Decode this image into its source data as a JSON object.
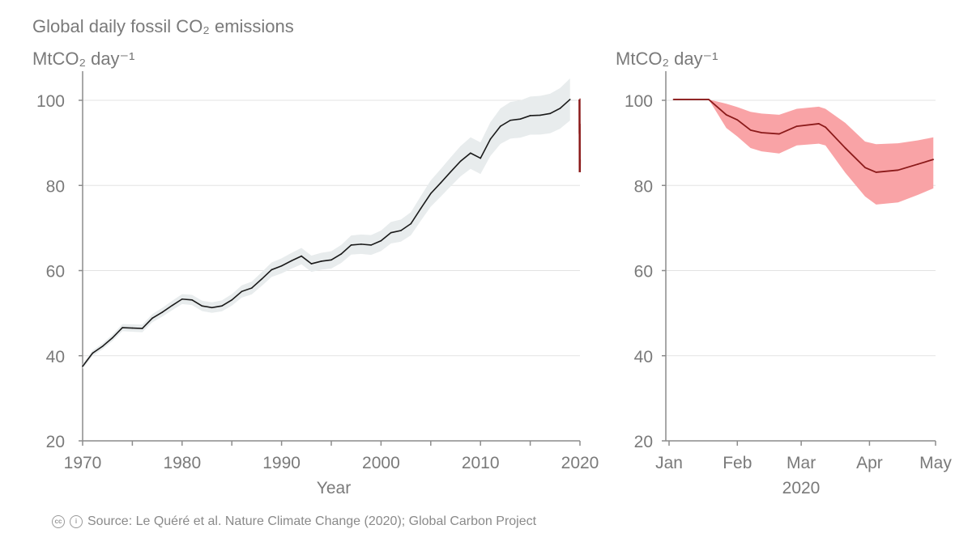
{
  "title": "Global daily fossil CO₂ emissions",
  "source": "Source: Le Quéré et al. Nature Climate Change (2020); Global Carbon Project",
  "colors": {
    "annual_line": "#1a1a1a",
    "annual_band": "#e8eced",
    "daily_line": "#8b1a1a",
    "daily_band": "#f9a3a6",
    "axis": "#8c8c8c",
    "grid": "#e3e3e3",
    "text": "#7a7a7a"
  },
  "chart_data": [
    {
      "type": "line",
      "ylabel": "MtCO₂ day⁻¹",
      "xlabel": "Year",
      "xlim": [
        1970,
        2020
      ],
      "ylim": [
        20,
        105
      ],
      "grid": "horizontal",
      "x_ticks": [
        "1970",
        "1980",
        "1990",
        "2000",
        "2010",
        "2020"
      ],
      "y_ticks": [
        "20",
        "40",
        "60",
        "80",
        "100"
      ],
      "uncertainty_pct": 5,
      "x": [
        1970,
        1971,
        1972,
        1973,
        1974,
        1975,
        1976,
        1977,
        1978,
        1979,
        1980,
        1981,
        1982,
        1983,
        1984,
        1985,
        1986,
        1987,
        1988,
        1989,
        1990,
        1991,
        1992,
        1993,
        1994,
        1995,
        1996,
        1997,
        1998,
        1999,
        2000,
        2001,
        2002,
        2003,
        2004,
        2005,
        2006,
        2007,
        2008,
        2009,
        2010,
        2011,
        2012,
        2013,
        2014,
        2015,
        2016,
        2017,
        2018,
        2019
      ],
      "values": [
        37.5,
        40.6,
        42.2,
        44.2,
        46.6,
        46.5,
        46.4,
        48.8,
        50.2,
        51.8,
        53.3,
        53.1,
        51.7,
        51.3,
        51.7,
        53.1,
        55.1,
        55.9,
        58.0,
        60.2,
        61.1,
        62.3,
        63.4,
        61.6,
        62.2,
        62.5,
        63.9,
        66.0,
        66.2,
        66.0,
        67.0,
        68.9,
        69.4,
        71.0,
        74.6,
        78.1,
        80.6,
        83.2,
        85.7,
        87.6,
        86.4,
        90.9,
        93.9,
        95.3,
        95.6,
        96.4,
        96.5,
        96.9,
        98.1,
        100.2
      ],
      "inset_2020": {
        "note": "daily 2020 values overlaid in red at 2020",
        "min": 83.1
      }
    },
    {
      "type": "area",
      "ylabel": "MtCO₂ day⁻¹",
      "xlabel": "2020",
      "xlim": [
        "2020-01-01",
        "2020-05-01"
      ],
      "ylim": [
        20,
        105
      ],
      "grid": "horizontal",
      "x_ticks": [
        "Jan",
        "Feb",
        "Mar",
        "Apr",
        "May"
      ],
      "y_ticks": [
        "20",
        "40",
        "60",
        "80",
        "100"
      ],
      "dates": [
        "2020-01-03",
        "2020-01-19",
        "2020-01-27",
        "2020-02-01",
        "2020-02-07",
        "2020-02-12",
        "2020-02-20",
        "2020-02-28",
        "2020-03-09",
        "2020-03-12",
        "2020-03-21",
        "2020-03-30",
        "2020-04-04",
        "2020-04-14",
        "2020-04-23",
        "2020-04-30"
      ],
      "values": [
        100.2,
        100.2,
        96.6,
        95.4,
        93.0,
        92.4,
        92.1,
        93.9,
        94.5,
        93.7,
        88.8,
        84.2,
        83.1,
        83.6,
        85.0,
        86.1
      ],
      "upper": [
        100.2,
        100.2,
        99.2,
        98.4,
        97.3,
        96.9,
        96.6,
        98.0,
        98.5,
        98.0,
        94.7,
        90.3,
        89.7,
        89.9,
        90.6,
        91.3
      ],
      "lower": [
        100.2,
        100.2,
        93.5,
        91.5,
        88.8,
        88.0,
        87.5,
        89.4,
        89.8,
        89.4,
        83.0,
        77.4,
        75.5,
        76.0,
        77.8,
        79.3
      ]
    }
  ]
}
